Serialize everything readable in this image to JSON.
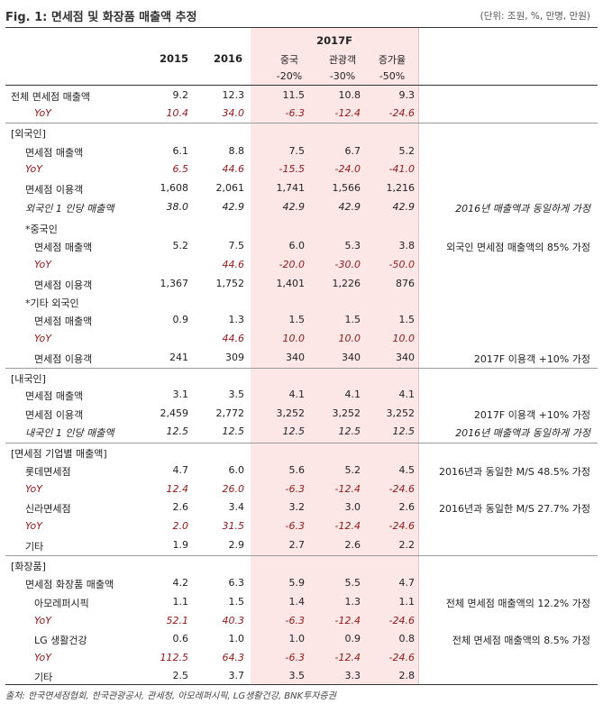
{
  "title": "Fig. 1: 면세점 및 화장품 매출액 추정",
  "unit": "(단위: 조원, %, 만명, 만원)",
  "header": {
    "y2015": "2015",
    "y2016": "2016",
    "y2017f": "2017F",
    "scenarios": [
      "중국",
      "관광객",
      "증가율"
    ],
    "scenario_pcts": [
      "-20%",
      "-30%",
      "-50%"
    ]
  },
  "rows": [
    {
      "label": "전체 면세점 매출액",
      "v2015": "9.2",
      "v2016": "12.3",
      "s1": "11.5",
      "s2": "10.8",
      "s3": "9.3",
      "note": ""
    },
    {
      "label": "YoY",
      "v2015": "10.4",
      "v2016": "34.0",
      "s1": "-6.3",
      "s2": "-12.4",
      "s3": "-24.6",
      "note": ""
    },
    {
      "label": "[외국인]",
      "v2015": "",
      "v2016": "",
      "s1": "",
      "s2": "",
      "s3": "",
      "note": ""
    },
    {
      "label": "면세점 매출액",
      "v2015": "6.1",
      "v2016": "8.8",
      "s1": "7.5",
      "s2": "6.7",
      "s3": "5.2",
      "note": ""
    },
    {
      "label": "YoY",
      "v2015": "6.5",
      "v2016": "44.6",
      "s1": "-15.5",
      "s2": "-24.0",
      "s3": "-41.0",
      "note": ""
    },
    {
      "label": "면세점 이용객",
      "v2015": "1,608",
      "v2016": "2,061",
      "s1": "1,741",
      "s2": "1,566",
      "s3": "1,216",
      "note": ""
    },
    {
      "label": "외국인 1 인당 매출액",
      "v2015": "38.0",
      "v2016": "42.9",
      "s1": "42.9",
      "s2": "42.9",
      "s3": "42.9",
      "note": "2016년 매출액과 동일하게 가정"
    },
    {
      "label": "*중국인",
      "v2015": "",
      "v2016": "",
      "s1": "",
      "s2": "",
      "s3": "",
      "note": ""
    },
    {
      "label": "면세점 매출액",
      "v2015": "5.2",
      "v2016": "7.5",
      "s1": "6.0",
      "s2": "5.3",
      "s3": "3.8",
      "note": "외국인 면세점 매출액의 85% 가정"
    },
    {
      "label": "YoY",
      "v2015": "",
      "v2016": "44.6",
      "s1": "-20.0",
      "s2": "-30.0",
      "s3": "-50.0",
      "note": ""
    },
    {
      "label": "면세점 이용객",
      "v2015": "1,367",
      "v2016": "1,752",
      "s1": "1,401",
      "s2": "1,226",
      "s3": "876",
      "note": ""
    },
    {
      "label": "*기타 외국인",
      "v2015": "",
      "v2016": "",
      "s1": "",
      "s2": "",
      "s3": "",
      "note": ""
    },
    {
      "label": "면세점 매출액",
      "v2015": "0.9",
      "v2016": "1.3",
      "s1": "1.5",
      "s2": "1.5",
      "s3": "1.5",
      "note": ""
    },
    {
      "label": "YoY",
      "v2015": "",
      "v2016": "44.6",
      "s1": "10.0",
      "s2": "10.0",
      "s3": "10.0",
      "note": ""
    },
    {
      "label": "면세점 이용객",
      "v2015": "241",
      "v2016": "309",
      "s1": "340",
      "s2": "340",
      "s3": "340",
      "note": "2017F 이용객 +10% 가정"
    },
    {
      "label": "[내국인]",
      "v2015": "",
      "v2016": "",
      "s1": "",
      "s2": "",
      "s3": "",
      "note": ""
    },
    {
      "label": "면세점 매출액",
      "v2015": "3.1",
      "v2016": "3.5",
      "s1": "4.1",
      "s2": "4.1",
      "s3": "4.1",
      "note": ""
    },
    {
      "label": "면세점 이용객",
      "v2015": "2,459",
      "v2016": "2,772",
      "s1": "3,252",
      "s2": "3,252",
      "s3": "3,252",
      "note": "2017F 이용객 +10% 가정"
    },
    {
      "label": "내국인 1 인당 매출액",
      "v2015": "12.5",
      "v2016": "12.5",
      "s1": "12.5",
      "s2": "12.5",
      "s3": "12.5",
      "note": "2016년 매출액과 동일하게 가정"
    },
    {
      "label": "[면세점 기업별 매출액]",
      "v2015": "",
      "v2016": "",
      "s1": "",
      "s2": "",
      "s3": "",
      "note": ""
    },
    {
      "label": "롯데면세점",
      "v2015": "4.7",
      "v2016": "6.0",
      "s1": "5.6",
      "s2": "5.2",
      "s3": "4.5",
      "note": "2016년과 동일한 M/S 48.5% 가정"
    },
    {
      "label": "YoY",
      "v2015": "12.4",
      "v2016": "26.0",
      "s1": "-6.3",
      "s2": "-12.4",
      "s3": "-24.6",
      "note": ""
    },
    {
      "label": "신라면세점",
      "v2015": "2.6",
      "v2016": "3.4",
      "s1": "3.2",
      "s2": "3.0",
      "s3": "2.6",
      "note": "2016년과 동일한 M/S 27.7% 가정"
    },
    {
      "label": "YoY",
      "v2015": "2.0",
      "v2016": "31.5",
      "s1": "-6.3",
      "s2": "-12.4",
      "s3": "-24.6",
      "note": ""
    },
    {
      "label": "기타",
      "v2015": "1.9",
      "v2016": "2.9",
      "s1": "2.7",
      "s2": "2.6",
      "s3": "2.2",
      "note": ""
    },
    {
      "label": "[화장품]",
      "v2015": "",
      "v2016": "",
      "s1": "",
      "s2": "",
      "s3": "",
      "note": ""
    },
    {
      "label": "면세점 화장품 매출액",
      "v2015": "4.2",
      "v2016": "6.3",
      "s1": "5.9",
      "s2": "5.5",
      "s3": "4.7",
      "note": ""
    },
    {
      "label": "아모레퍼시픽",
      "v2015": "1.1",
      "v2016": "1.5",
      "s1": "1.4",
      "s2": "1.3",
      "s3": "1.1",
      "note": "전체 면세점 매출액의 12.2% 가정"
    },
    {
      "label": "YoY",
      "v2015": "52.1",
      "v2016": "40.3",
      "s1": "-6.3",
      "s2": "-12.4",
      "s3": "-24.6",
      "note": ""
    },
    {
      "label": "LG 생활건강",
      "v2015": "0.6",
      "v2016": "1.0",
      "s1": "1.0",
      "s2": "0.9",
      "s3": "0.8",
      "note": "전체 면세점 매출액의 8.5% 가정"
    },
    {
      "label": "YoY",
      "v2015": "112.5",
      "v2016": "64.3",
      "s1": "-6.3",
      "s2": "-12.4",
      "s3": "-24.6",
      "note": ""
    },
    {
      "label": "기타",
      "v2015": "2.5",
      "v2016": "3.7",
      "s1": "3.5",
      "s2": "3.3",
      "s3": "2.8",
      "note": ""
    }
  ],
  "source": "출처: 한국면세점협회, 한국관광공사, 관세청, 아모레퍼시픽, LG생활건강, BNK투자증권"
}
